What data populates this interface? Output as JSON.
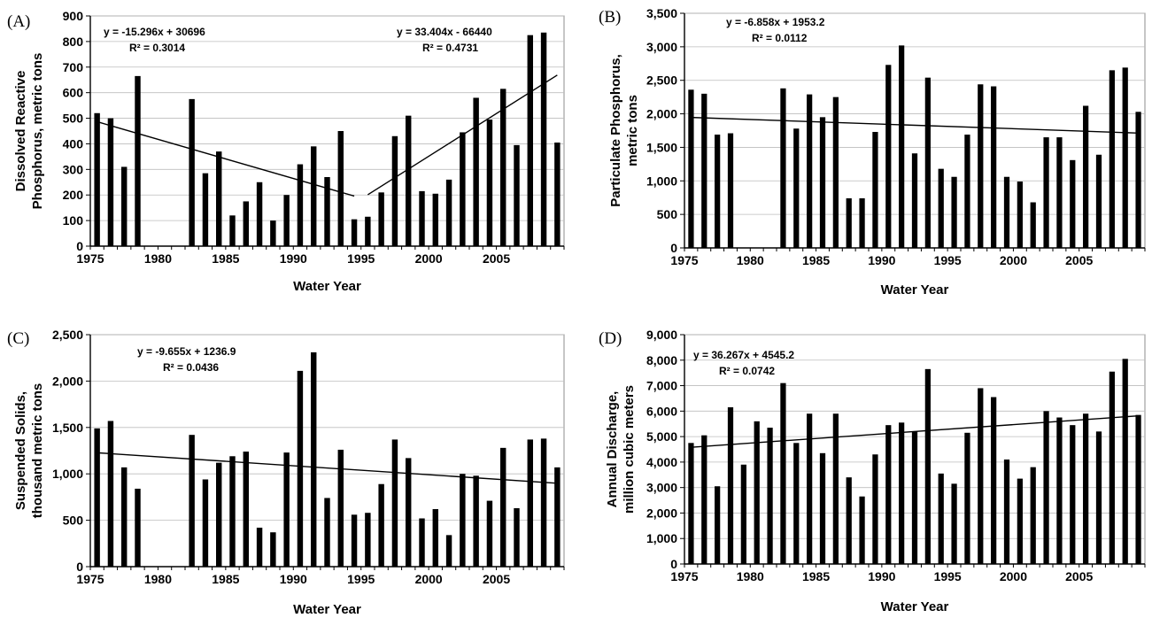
{
  "chart_data": [
    {
      "panel": "(A)",
      "type": "bar",
      "xlabel": "Water Year",
      "ylabel": [
        "Dissolved Reactive",
        "Phosphorus, metric tons"
      ],
      "ylim": [
        0,
        900
      ],
      "ytick_labels": [
        "0",
        "100",
        "200",
        "300",
        "400",
        "500",
        "600",
        "700",
        "800",
        "900"
      ],
      "xtick_labels": [
        "1975",
        "1980",
        "1985",
        "1990",
        "1995",
        "2000",
        "2005"
      ],
      "x_years": [
        1975,
        2009
      ],
      "grid": true,
      "series": [
        {
          "x": [
            1975,
            1976,
            1977,
            1978,
            1982,
            1983,
            1984,
            1985,
            1986,
            1987,
            1988,
            1989,
            1990,
            1991,
            1992,
            1993,
            1994,
            1995,
            1996,
            1997,
            1998,
            1999,
            2000,
            2001,
            2002,
            2003,
            2004,
            2005,
            2006,
            2007,
            2008,
            2009
          ],
          "values": [
            520,
            500,
            310,
            665,
            575,
            285,
            370,
            120,
            175,
            250,
            100,
            200,
            320,
            390,
            270,
            450,
            105,
            115,
            210,
            430,
            510,
            215,
            205,
            260,
            445,
            580,
            495,
            615,
            395,
            825,
            835,
            405
          ]
        }
      ],
      "trendlines": [
        {
          "label_lines": [
            "y = -15.296x + 30696",
            "R² = 0.3014"
          ],
          "x_start": 1975,
          "x_end": 1994,
          "slope": -15.296,
          "intercept": 30696
        },
        {
          "label_lines": [
            "y = 33.404x - 66440",
            "R² = 0.4731"
          ],
          "x_start": 1995,
          "x_end": 2009,
          "slope": 33.404,
          "intercept": -66440
        }
      ]
    },
    {
      "panel": "(B)",
      "type": "bar",
      "xlabel": "Water Year",
      "ylabel": [
        "Particulate Phosphorus,",
        "metric tons"
      ],
      "ylim": [
        0,
        3500
      ],
      "ytick_labels": [
        "0",
        "500",
        "1,000",
        "1,500",
        "2,000",
        "2,500",
        "3,000",
        "3,500"
      ],
      "xtick_labels": [
        "1975",
        "1980",
        "1985",
        "1990",
        "1995",
        "2000",
        "2005"
      ],
      "x_years": [
        1975,
        2009
      ],
      "grid": true,
      "series": [
        {
          "x": [
            1975,
            1976,
            1977,
            1978,
            1982,
            1983,
            1984,
            1985,
            1986,
            1987,
            1988,
            1989,
            1990,
            1991,
            1992,
            1993,
            1994,
            1995,
            1996,
            1997,
            1998,
            1999,
            2000,
            2001,
            2002,
            2003,
            2004,
            2005,
            2006,
            2007,
            2008,
            2009
          ],
          "values": [
            2360,
            2300,
            1690,
            1710,
            2380,
            1780,
            2290,
            1950,
            2250,
            740,
            740,
            1730,
            2730,
            3020,
            1410,
            2540,
            1180,
            1060,
            1690,
            2440,
            2410,
            1060,
            990,
            680,
            1650,
            1650,
            1310,
            2120,
            1390,
            2650,
            2690,
            2030
          ]
        }
      ],
      "trendlines": [
        {
          "label_lines": [
            "y = -6.858x + 1953.2",
            "R² = 0.0112"
          ],
          "x_start": 1975,
          "x_end": 2009,
          "slope": -6.858,
          "intercept": 1953.2,
          "x_is_index": true
        }
      ]
    },
    {
      "panel": "(C)",
      "type": "bar",
      "xlabel": "Water Year",
      "ylabel": [
        "Suspended Solids,",
        "thousand metric tons"
      ],
      "ylim": [
        0,
        2500
      ],
      "ytick_labels": [
        "0",
        "500",
        "1,000",
        "1,500",
        "2,000",
        "2,500"
      ],
      "xtick_labels": [
        "1975",
        "1980",
        "1985",
        "1990",
        "1995",
        "2000",
        "2005"
      ],
      "x_years": [
        1975,
        2009
      ],
      "grid": true,
      "series": [
        {
          "x": [
            1975,
            1976,
            1977,
            1978,
            1982,
            1983,
            1984,
            1985,
            1986,
            1987,
            1988,
            1989,
            1990,
            1991,
            1992,
            1993,
            1994,
            1995,
            1996,
            1997,
            1998,
            1999,
            2000,
            2001,
            2002,
            2003,
            2004,
            2005,
            2006,
            2007,
            2008,
            2009
          ],
          "values": [
            1490,
            1570,
            1070,
            840,
            1420,
            940,
            1120,
            1190,
            1240,
            420,
            370,
            1230,
            2110,
            2310,
            740,
            1260,
            560,
            580,
            890,
            1370,
            1170,
            520,
            620,
            340,
            1000,
            980,
            710,
            1280,
            630,
            1370,
            1380,
            1070
          ]
        }
      ],
      "trendlines": [
        {
          "label_lines": [
            "y = -9.655x + 1236.9",
            "R² = 0.0436"
          ],
          "x_start": 1975,
          "x_end": 2009,
          "slope": -9.655,
          "intercept": 1236.9,
          "x_is_index": true
        }
      ]
    },
    {
      "panel": "(D)",
      "type": "bar",
      "xlabel": "Water Year",
      "ylabel": [
        "Annual Discharge,",
        "million cubic meters"
      ],
      "ylim": [
        0,
        9000
      ],
      "ytick_labels": [
        "0",
        "1,000",
        "2,000",
        "3,000",
        "4,000",
        "5,000",
        "6,000",
        "7,000",
        "8,000",
        "9,000"
      ],
      "xtick_labels": [
        "1975",
        "1980",
        "1985",
        "1990",
        "1995",
        "2000",
        "2005"
      ],
      "x_years": [
        1975,
        2009
      ],
      "grid": true,
      "series": [
        {
          "x": [
            1975,
            1976,
            1977,
            1978,
            1979,
            1980,
            1981,
            1982,
            1983,
            1984,
            1985,
            1986,
            1987,
            1988,
            1989,
            1990,
            1991,
            1992,
            1993,
            1994,
            1995,
            1996,
            1997,
            1998,
            1999,
            2000,
            2001,
            2002,
            2003,
            2004,
            2005,
            2006,
            2007,
            2008,
            2009
          ],
          "values": [
            4750,
            5050,
            3050,
            6150,
            3900,
            5600,
            5350,
            7100,
            4750,
            5900,
            4350,
            5900,
            3400,
            2650,
            4300,
            5450,
            5550,
            5200,
            7650,
            3550,
            3150,
            5150,
            6900,
            6550,
            4100,
            3350,
            3800,
            6000,
            5750,
            5450,
            5900,
            5200,
            7550,
            8050,
            5850
          ]
        }
      ],
      "trendlines": [
        {
          "label_lines": [
            "y = 36.267x + 4545.2",
            "R² = 0.0742"
          ],
          "x_start": 1975,
          "x_end": 2009,
          "slope": 36.267,
          "intercept": 4545.2,
          "x_is_index": true
        }
      ]
    }
  ]
}
